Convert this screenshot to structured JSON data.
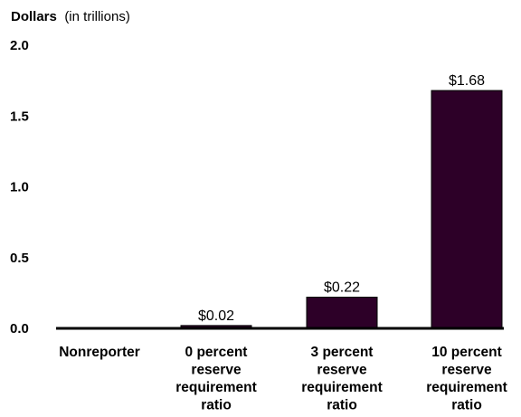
{
  "chart_data": {
    "type": "bar",
    "ylabel": "Dollars",
    "ylabel_unit": "(in trillions)",
    "ylim": [
      0,
      2.0
    ],
    "yticks": [
      "2.0",
      "1.5",
      "1.0",
      "0.5",
      "0.0"
    ],
    "ytick_values": [
      2.0,
      1.5,
      1.0,
      0.5,
      0.0
    ],
    "categories": [
      [
        "Nonreporter"
      ],
      [
        "0 percent",
        "reserve",
        "requirement",
        "ratio"
      ],
      [
        "3 percent",
        "reserve",
        "requirement",
        "ratio"
      ],
      [
        "10 percent",
        "reserve",
        "requirement",
        "ratio"
      ]
    ],
    "values": [
      0.0,
      0.02,
      0.22,
      1.68
    ],
    "data_labels": [
      "",
      "$0.02",
      "$0.22",
      "$1.68"
    ],
    "bar_color": "#2d0028",
    "grid": false,
    "legend": "none"
  }
}
